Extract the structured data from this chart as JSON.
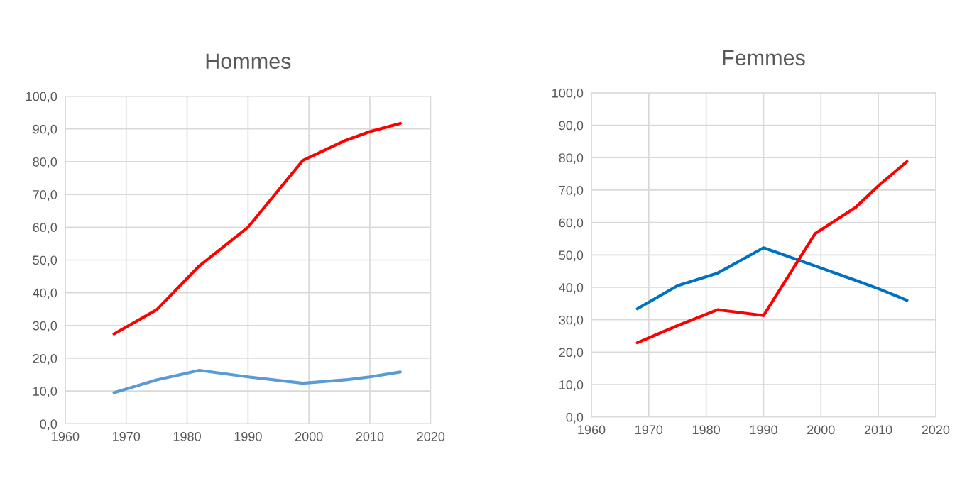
{
  "chart_data": [
    {
      "type": "line",
      "title": "Hommes",
      "x": [
        1968,
        1975,
        1982,
        1990,
        1999,
        2006,
        2010,
        2015
      ],
      "series": [
        {
          "color": "#ff0000",
          "values": [
            27.4,
            34.8,
            48.2,
            60.0,
            80.4,
            86.5,
            89.2,
            91.7
          ]
        },
        {
          "color": "#5b9bd5",
          "values": [
            9.5,
            13.4,
            16.3,
            14.3,
            12.4,
            13.4,
            14.3,
            15.8
          ]
        }
      ],
      "xlim": [
        1960,
        2020
      ],
      "xticks": [
        1960,
        1970,
        1980,
        1990,
        2000,
        2010,
        2020
      ],
      "ylim": [
        0,
        100
      ],
      "yticks": [
        {
          "value": 0,
          "label": "0,0"
        },
        {
          "value": 10,
          "label": "10,0"
        },
        {
          "value": 20,
          "label": "20,0"
        },
        {
          "value": 30,
          "label": "30,0"
        },
        {
          "value": 40,
          "label": "40,0"
        },
        {
          "value": 50,
          "label": "50,0"
        },
        {
          "value": 60,
          "label": "60,0"
        },
        {
          "value": 70,
          "label": "70,0"
        },
        {
          "value": 80,
          "label": "80,0"
        },
        {
          "value": 90,
          "label": "90,0"
        },
        {
          "value": 100,
          "label": "100,0"
        }
      ],
      "grid": true
    },
    {
      "type": "line",
      "title": "Femmes",
      "x": [
        1968,
        1975,
        1982,
        1990,
        1999,
        2006,
        2010,
        2015
      ],
      "series": [
        {
          "color": "#0070c0",
          "values": [
            33.4,
            40.5,
            44.4,
            52.2,
            46.6,
            42.2,
            39.6,
            36.0
          ]
        },
        {
          "color": "#ff0000",
          "values": [
            22.9,
            28.2,
            33.1,
            31.3,
            56.6,
            64.6,
            71.3,
            78.8
          ]
        }
      ],
      "xlim": [
        1960,
        2020
      ],
      "xticks": [
        1960,
        1970,
        1980,
        1990,
        2000,
        2010,
        2020
      ],
      "ylim": [
        0,
        100
      ],
      "yticks": [
        {
          "value": 0,
          "label": "0,0"
        },
        {
          "value": 10,
          "label": "10,0"
        },
        {
          "value": 20,
          "label": "20,0"
        },
        {
          "value": 30,
          "label": "30,0"
        },
        {
          "value": 40,
          "label": "40,0"
        },
        {
          "value": 50,
          "label": "50,0"
        },
        {
          "value": 60,
          "label": "60,0"
        },
        {
          "value": 70,
          "label": "70,0"
        },
        {
          "value": 80,
          "label": "80,0"
        },
        {
          "value": 90,
          "label": "90,0"
        },
        {
          "value": 100,
          "label": "100,0"
        }
      ],
      "grid": true
    }
  ]
}
